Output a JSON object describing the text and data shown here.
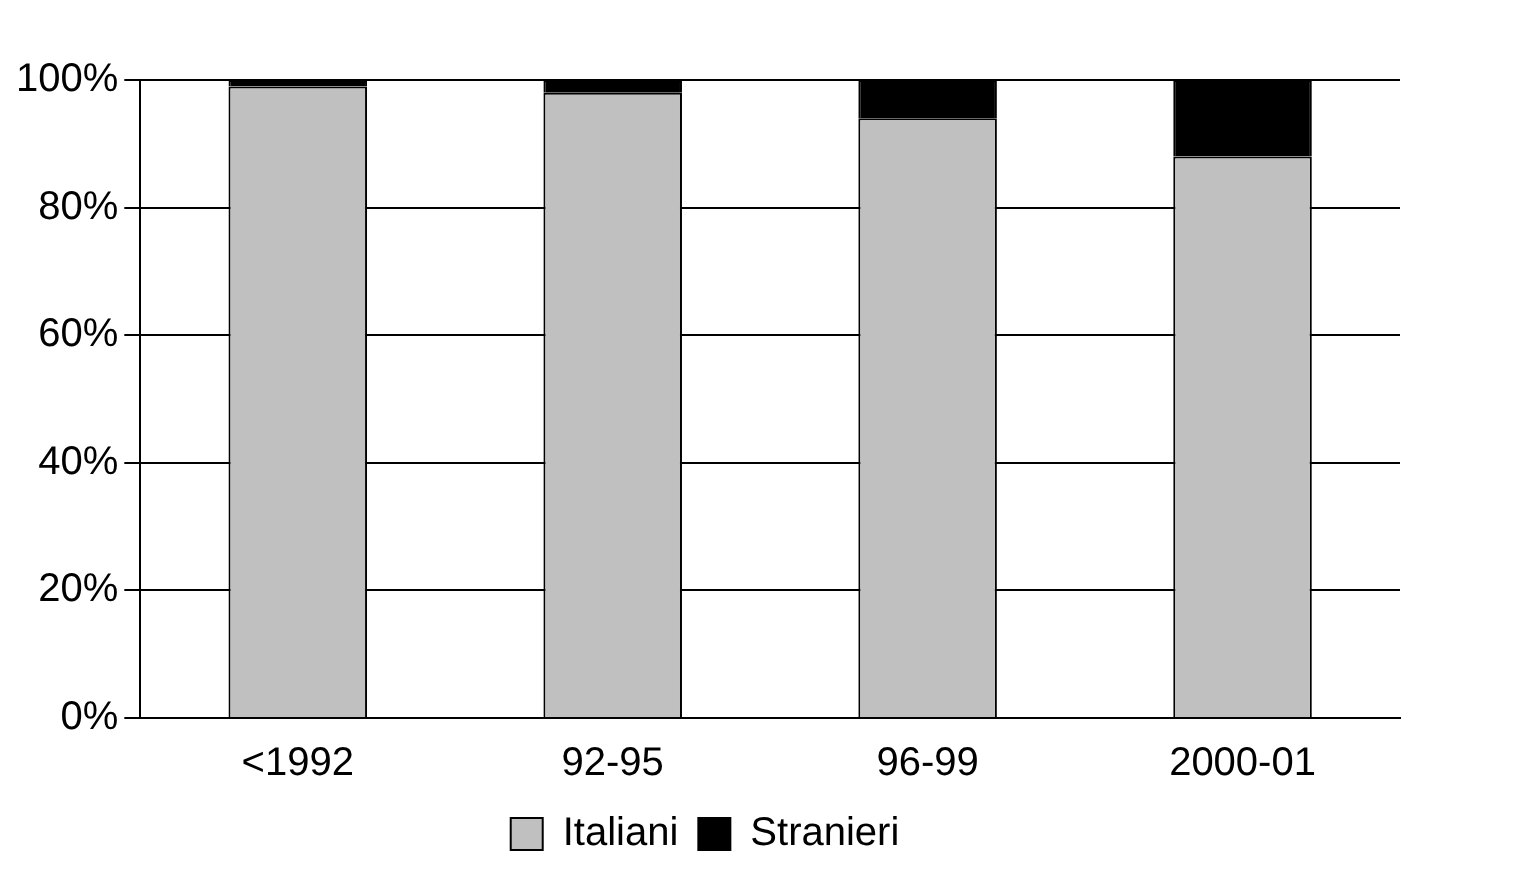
{
  "chart_data": {
    "type": "bar",
    "stacked": true,
    "categories": [
      "<1992",
      "92-95",
      "96-99",
      "2000-01"
    ],
    "series": [
      {
        "name": "Italiani",
        "color": "#c0c0c0",
        "values": [
          99,
          98,
          94,
          88
        ]
      },
      {
        "name": "Stranieri",
        "color": "#000000",
        "values": [
          1,
          2,
          6,
          12
        ]
      }
    ],
    "ylim": [
      0,
      100
    ],
    "yticks": [
      {
        "value": 0,
        "label": "0%"
      },
      {
        "value": 20,
        "label": "20%"
      },
      {
        "value": 40,
        "label": "40%"
      },
      {
        "value": 60,
        "label": "60%"
      },
      {
        "value": 80,
        "label": "80%"
      },
      {
        "value": 100,
        "label": "100%"
      }
    ],
    "grid": "y",
    "legend": "bottom"
  }
}
